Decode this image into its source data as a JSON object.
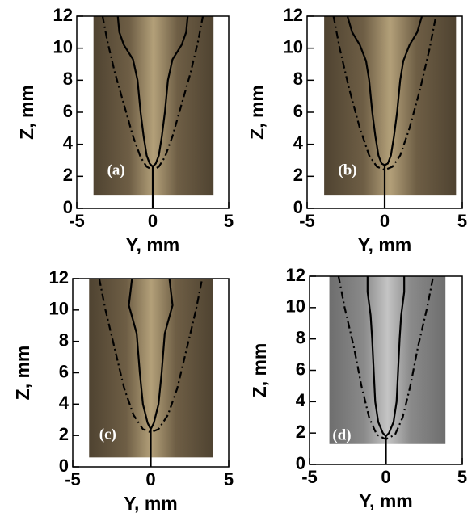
{
  "chart_data": [
    {
      "type": "line",
      "label": "(a)",
      "xlabel": "Y, mm",
      "ylabel": "Z, mm",
      "xlim": [
        -5,
        5
      ],
      "ylim": [
        0,
        12
      ],
      "xticks": [
        -5,
        0,
        5
      ],
      "yticks": [
        0,
        2,
        4,
        6,
        8,
        10,
        12
      ],
      "series": [
        {
          "color": "#000000",
          "style": "solid",
          "x": [
            -2.3,
            -2.2,
            -1.9,
            -1.3,
            -1.0,
            -0.8,
            -0.6,
            -0.4,
            -0.2,
            0,
            0.2,
            0.4,
            0.6,
            0.8,
            1.0,
            1.3,
            1.9,
            2.2,
            2.3
          ],
          "values": [
            12,
            11,
            10.2,
            9.3,
            8,
            6,
            4.5,
            3.3,
            2.8,
            2.6,
            2.8,
            3.3,
            4.5,
            6,
            8,
            9.3,
            10.2,
            11,
            12
          ]
        },
        {
          "color": "#000000",
          "style": "dashdot",
          "x": [
            -3.3,
            -3.0,
            -2.5,
            -1.9,
            -1.3,
            -0.8,
            -0.4,
            0,
            0.4,
            0.8,
            1.3,
            1.9,
            2.5,
            3.0,
            3.3
          ],
          "values": [
            12,
            10.5,
            8.5,
            6.5,
            4.5,
            3.2,
            2.6,
            2.4,
            2.6,
            3.2,
            4.5,
            6.5,
            8.5,
            10.5,
            12
          ]
        },
        {
          "color": "#000000",
          "style": "solid",
          "x": [
            0,
            0
          ],
          "values": [
            0,
            2.6
          ]
        }
      ]
    },
    {
      "type": "line",
      "label": "(b)",
      "xlabel": "Y, mm",
      "ylabel": "Z, mm",
      "xlim": [
        -5,
        5
      ],
      "ylim": [
        0,
        12
      ],
      "xticks": [
        -5,
        0,
        5
      ],
      "yticks": [
        0,
        2,
        4,
        6,
        8,
        10,
        12
      ],
      "series": [
        {
          "color": "#000000",
          "style": "solid",
          "x": [
            -2.4,
            -2.1,
            -1.6,
            -1.2,
            -1.0,
            -0.8,
            -0.6,
            -0.4,
            -0.2,
            0,
            0.2,
            0.4,
            0.6,
            0.8,
            1.0,
            1.2,
            1.6,
            2.1,
            2.4
          ],
          "values": [
            12,
            11,
            10.2,
            9.2,
            8,
            6,
            4.5,
            3.3,
            2.8,
            2.7,
            2.8,
            3.3,
            4.5,
            6,
            8,
            9.2,
            10.2,
            11,
            12
          ]
        },
        {
          "color": "#000000",
          "style": "dashdot",
          "x": [
            -3.3,
            -2.9,
            -2.3,
            -1.6,
            -1,
            -0.5,
            0,
            0.5,
            1,
            1.6,
            2.3,
            2.9,
            3.3
          ],
          "values": [
            12,
            10,
            7.5,
            5,
            3.3,
            2.6,
            2.4,
            2.6,
            3.3,
            5,
            7.5,
            10,
            12
          ]
        },
        {
          "color": "#000000",
          "style": "solid",
          "x": [
            0,
            0
          ],
          "values": [
            0,
            2.7
          ]
        }
      ]
    },
    {
      "type": "line",
      "label": "(c)",
      "xlabel": "Y, mm",
      "ylabel": "Z, mm",
      "xlim": [
        -5,
        5
      ],
      "ylim": [
        0,
        12
      ],
      "xticks": [
        -5,
        0,
        5
      ],
      "yticks": [
        0,
        2,
        4,
        6,
        8,
        10,
        12
      ],
      "series": [
        {
          "color": "#000000",
          "style": "solid",
          "x": [
            -1.2,
            -1.4,
            -0.9,
            -0.7,
            -0.5,
            -0.2,
            0,
            0.2,
            0.5,
            0.7,
            0.9,
            1.4,
            1.2
          ],
          "values": [
            12,
            10.3,
            8.5,
            6,
            4,
            2.8,
            2.4,
            2.8,
            4,
            6,
            8.5,
            10.3,
            12
          ]
        },
        {
          "color": "#000000",
          "style": "dashdot",
          "x": [
            -3.3,
            -2.9,
            -2.3,
            -1.7,
            -1.1,
            -0.5,
            0,
            0.5,
            1.1,
            1.7,
            2.3,
            2.9,
            3.3
          ],
          "values": [
            12,
            10,
            7.5,
            5,
            3.3,
            2.4,
            2.2,
            2.4,
            3.3,
            5,
            7.5,
            10,
            12
          ]
        },
        {
          "color": "#000000",
          "style": "solid",
          "x": [
            0,
            0
          ],
          "values": [
            0,
            2.4
          ]
        }
      ]
    },
    {
      "type": "line",
      "label": "(d)",
      "xlabel": "Y, mm",
      "ylabel": "Z, mm",
      "xlim": [
        -5,
        5
      ],
      "ylim": [
        0,
        12
      ],
      "xticks": [
        -5,
        0,
        5
      ],
      "yticks": [
        0,
        2,
        4,
        6,
        8,
        10,
        12
      ],
      "series": [
        {
          "color": "#000000",
          "style": "solid",
          "x": [
            -1.2,
            -1.2,
            -1.0,
            -0.9,
            -0.8,
            -0.7,
            -0.5,
            -0.2,
            0,
            0.2,
            0.5,
            0.7,
            0.8,
            0.9,
            1.0,
            1.2,
            1.2
          ],
          "values": [
            12,
            11,
            9.5,
            8,
            6,
            4,
            2.7,
            2,
            1.8,
            2,
            2.7,
            4,
            6,
            8,
            9.5,
            11,
            12
          ]
        },
        {
          "color": "#000000",
          "style": "dashdot",
          "x": [
            -3.1,
            -2.7,
            -2.1,
            -1.6,
            -1.1,
            -0.6,
            0,
            0.6,
            1.1,
            1.6,
            2.1,
            2.7,
            3.1
          ],
          "values": [
            12,
            10,
            7.5,
            5,
            3,
            1.9,
            1.6,
            1.9,
            3,
            5,
            7.5,
            10,
            12
          ]
        },
        {
          "color": "#000000",
          "style": "solid",
          "x": [
            0,
            0
          ],
          "values": [
            0,
            1.8
          ]
        }
      ]
    }
  ]
}
